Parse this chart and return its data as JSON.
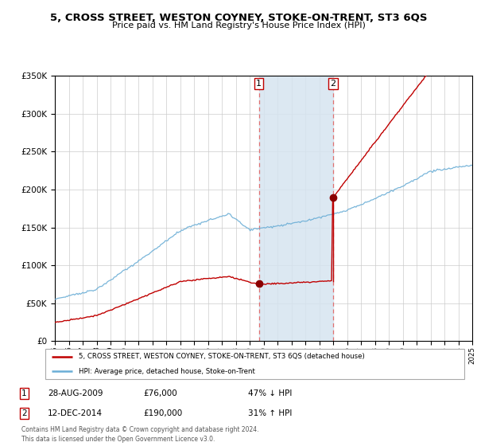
{
  "title": "5, CROSS STREET, WESTON COYNEY, STOKE-ON-TRENT, ST3 6QS",
  "subtitle": "Price paid vs. HM Land Registry's House Price Index (HPI)",
  "sale1_date": 2009.66,
  "sale1_price": 76000,
  "sale2_date": 2015.0,
  "sale2_price": 190000,
  "sale1_display": "28-AUG-2009",
  "sale1_price_display": "£76,000",
  "sale1_hpi": "47% ↓ HPI",
  "sale2_display": "12-DEC-2014",
  "sale2_price_display": "£190,000",
  "sale2_hpi": "31% ↑ HPI",
  "hpi_line_color": "#6baed6",
  "sale_line_color": "#c00000",
  "dot_color": "#8b0000",
  "shade_color": "#d6e4f0",
  "ylim": [
    0,
    350000
  ],
  "xlim_start": 1995,
  "xlim_end": 2025,
  "legend_sale_label": "5, CROSS STREET, WESTON COYNEY, STOKE-ON-TRENT, ST3 6QS (detached house)",
  "legend_hpi_label": "HPI: Average price, detached house, Stoke-on-Trent",
  "footer": "Contains HM Land Registry data © Crown copyright and database right 2024.\nThis data is licensed under the Open Government Licence v3.0."
}
